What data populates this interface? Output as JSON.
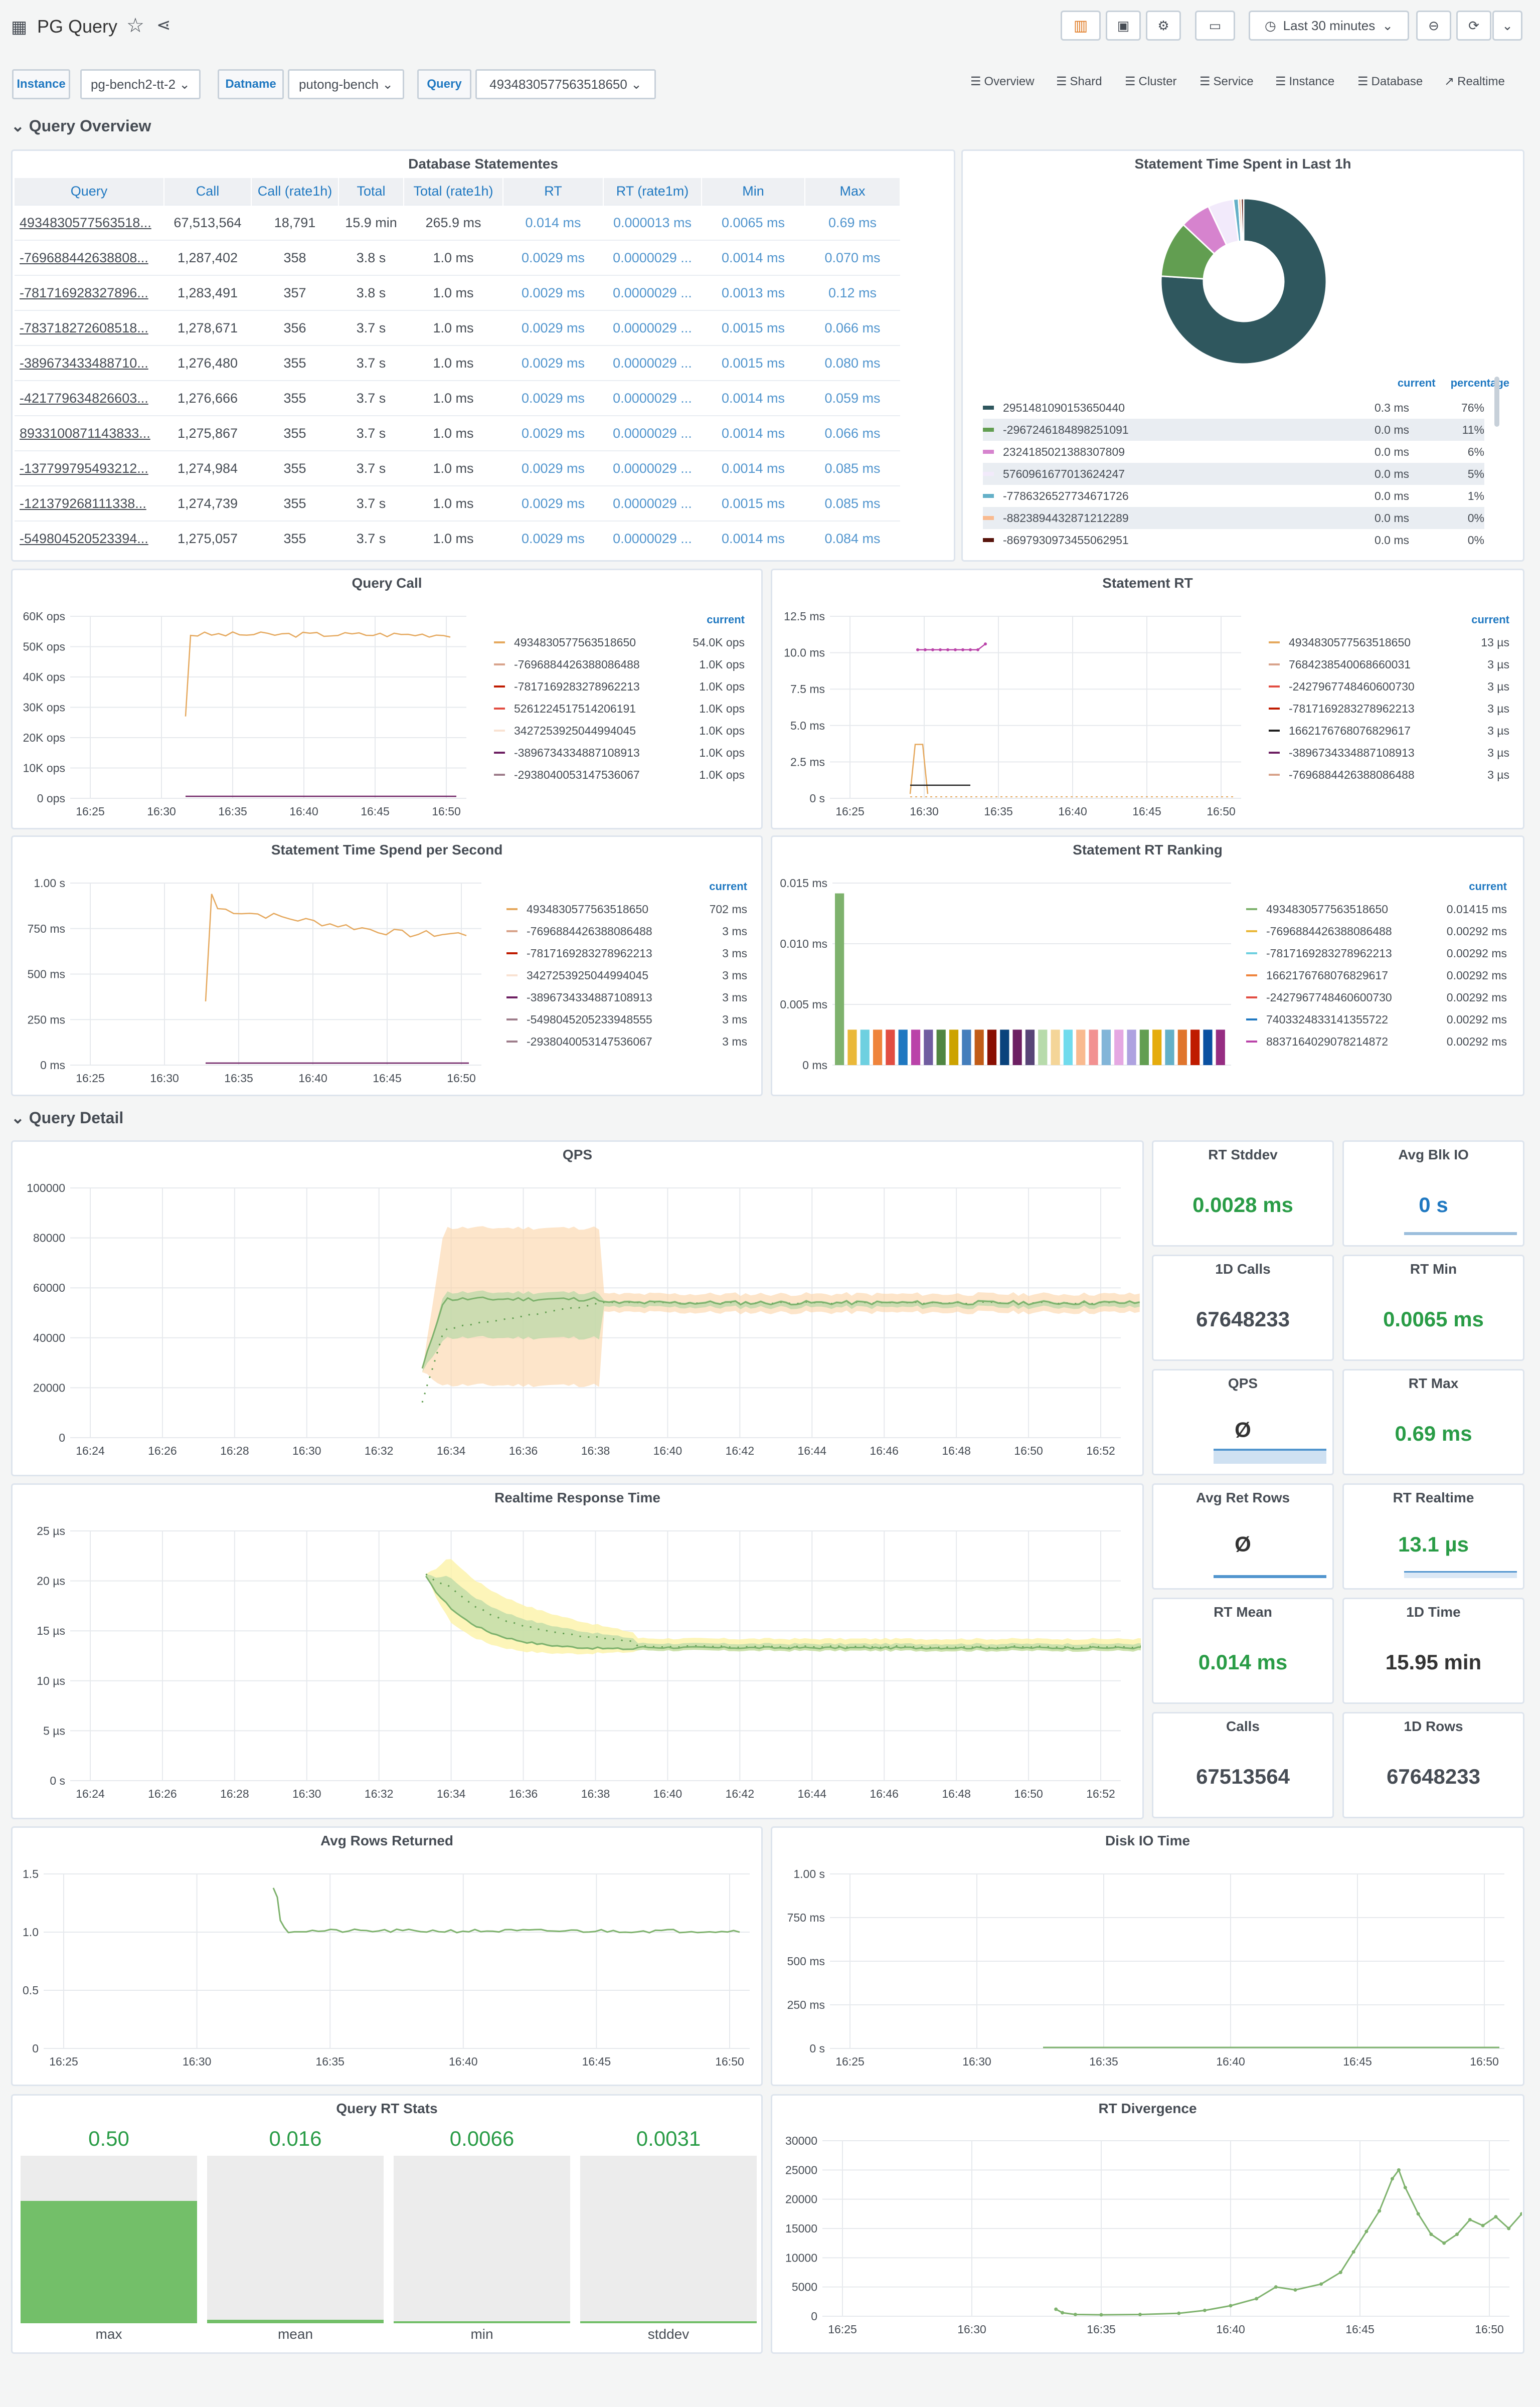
{
  "header": {
    "title": "PG Query",
    "time_range": "Last 30 minutes"
  },
  "vars": [
    {
      "label": "Instance",
      "value": "pg-bench2-tt-2"
    },
    {
      "label": "Datname",
      "value": "putong-bench"
    },
    {
      "label": "Query",
      "value": "4934830577563518650"
    }
  ],
  "links": [
    "Overview",
    "Shard",
    "Cluster",
    "Service",
    "Instance",
    "Database",
    "Realtime"
  ],
  "rows": {
    "overview": "Query Overview",
    "detail": "Query Detail"
  },
  "db_table": {
    "title": "Database Statementes",
    "columns": [
      "Query",
      "Call",
      "Call (rate1h)",
      "Total",
      "Total (rate1h)",
      "RT",
      "RT (rate1m)",
      "Min",
      "Max"
    ],
    "rows": [
      [
        "4934830577563518...",
        "67,513,564",
        "18,791",
        "15.9 min",
        "265.9 ms",
        "0.014 ms",
        "0.000013 ms",
        "0.0065 ms",
        "0.69 ms"
      ],
      [
        "-769688442638808...",
        "1,287,402",
        "358",
        "3.8 s",
        "1.0 ms",
        "0.0029 ms",
        "0.0000029 ...",
        "0.0014 ms",
        "0.070 ms"
      ],
      [
        "-781716928327896...",
        "1,283,491",
        "357",
        "3.8 s",
        "1.0 ms",
        "0.0029 ms",
        "0.0000029 ...",
        "0.0013 ms",
        "0.12 ms"
      ],
      [
        "-783718272608518...",
        "1,278,671",
        "356",
        "3.7 s",
        "1.0 ms",
        "0.0029 ms",
        "0.0000029 ...",
        "0.0015 ms",
        "0.066 ms"
      ],
      [
        "-389673433488710...",
        "1,276,480",
        "355",
        "3.7 s",
        "1.0 ms",
        "0.0029 ms",
        "0.0000029 ...",
        "0.0015 ms",
        "0.080 ms"
      ],
      [
        "-421779634826603...",
        "1,276,666",
        "355",
        "3.7 s",
        "1.0 ms",
        "0.0029 ms",
        "0.0000029 ...",
        "0.0014 ms",
        "0.059 ms"
      ],
      [
        "8933100871143833...",
        "1,275,867",
        "355",
        "3.7 s",
        "1.0 ms",
        "0.0029 ms",
        "0.0000029 ...",
        "0.0014 ms",
        "0.066 ms"
      ],
      [
        "-137799795493212...",
        "1,274,984",
        "355",
        "3.7 s",
        "1.0 ms",
        "0.0029 ms",
        "0.0000029 ...",
        "0.0014 ms",
        "0.085 ms"
      ],
      [
        "-121379268111338...",
        "1,274,739",
        "355",
        "3.7 s",
        "1.0 ms",
        "0.0029 ms",
        "0.0000029 ...",
        "0.0015 ms",
        "0.085 ms"
      ],
      [
        "-549804520523394...",
        "1,275,057",
        "355",
        "3.7 s",
        "1.0 ms",
        "0.0029 ms",
        "0.0000029 ...",
        "0.0014 ms",
        "0.084 ms"
      ]
    ]
  },
  "pie": {
    "title": "Statement Time Spent in Last 1h",
    "hdr_current": "current",
    "hdr_percentage": "percentage",
    "items": [
      {
        "name": "2951481090153650440",
        "current": "0.3 ms",
        "pct": "76%",
        "color": "#2f575e",
        "value": 76
      },
      {
        "name": "-2967246184898251091",
        "current": "0.0 ms",
        "pct": "11%",
        "color": "#629e51",
        "value": 11
      },
      {
        "name": "2324185021388307809",
        "current": "0.0 ms",
        "pct": "6%",
        "color": "#d683ce",
        "value": 6
      },
      {
        "name": "5760961677013624247",
        "current": "0.0 ms",
        "pct": "5%",
        "color": "#f2eafb",
        "value": 5
      },
      {
        "name": "-7786326527734671726",
        "current": "0.0 ms",
        "pct": "1%",
        "color": "#64b0c8",
        "value": 1
      },
      {
        "name": "-8823894432871212289",
        "current": "0.0 ms",
        "pct": "0%",
        "color": "#f9ba8f",
        "value": 0.5
      },
      {
        "name": "-8697930973455062951",
        "current": "0.0 ms",
        "pct": "0%",
        "color": "#58140c",
        "value": 0.5
      }
    ]
  },
  "query_call": {
    "title": "Query Call",
    "hdr": "current",
    "legend": [
      {
        "name": "4934830577563518650",
        "val": "54.0K ops",
        "color": "#e5a85d"
      },
      {
        "name": "-7696884426388086488",
        "val": "1.0K ops",
        "color": "#d8a38b"
      },
      {
        "name": "-7817169283278962213",
        "val": "1.0K ops",
        "color": "#bf1b00"
      },
      {
        "name": "5261224517514206191",
        "val": "1.0K ops",
        "color": "#e24d42"
      },
      {
        "name": "3427253925044994045",
        "val": "1.0K ops",
        "color": "#f9e2d2"
      },
      {
        "name": "-3896734334887108913",
        "val": "1.0K ops",
        "color": "#6d1f62"
      },
      {
        "name": "-2938040053147536067",
        "val": "1.0K ops",
        "color": "#9e7d8b"
      }
    ],
    "y_ticks": [
      "60K ops",
      "50K ops",
      "40K ops",
      "30K ops",
      "20K ops",
      "10K ops",
      "0 ops"
    ],
    "x_ticks": [
      "16:25",
      "16:30",
      "16:35",
      "16:40",
      "16:45",
      "16:50"
    ]
  },
  "stmt_rt": {
    "title": "Statement RT",
    "hdr": "current",
    "legend": [
      {
        "name": "4934830577563518650",
        "val": "13 µs",
        "color": "#e5a85d"
      },
      {
        "name": "7684238540068660031",
        "val": "3 µs",
        "color": "#d8a38b"
      },
      {
        "name": "-2427967748460600730",
        "val": "3 µs",
        "color": "#e24d42"
      },
      {
        "name": "-7817169283278962213",
        "val": "3 µs",
        "color": "#bf1b00"
      },
      {
        "name": "1662176768076829617",
        "val": "3 µs",
        "color": "#1f1f1f"
      },
      {
        "name": "-3896734334887108913",
        "val": "3 µs",
        "color": "#6d1f62"
      },
      {
        "name": "-7696884426388086488",
        "val": "3 µs",
        "color": "#d8a38b"
      }
    ],
    "y_ticks": [
      "12.5 ms",
      "10.0 ms",
      "7.5 ms",
      "5.0 ms",
      "2.5 ms",
      "0 s"
    ],
    "x_ticks": [
      "16:25",
      "16:30",
      "16:35",
      "16:40",
      "16:45",
      "16:50"
    ]
  },
  "time_spend": {
    "title": "Statement Time Spend per Second",
    "hdr": "current",
    "legend": [
      {
        "name": "4934830577563518650",
        "val": "702 ms",
        "color": "#e5a85d"
      },
      {
        "name": "-7696884426388086488",
        "val": "3 ms",
        "color": "#d8a38b"
      },
      {
        "name": "-7817169283278962213",
        "val": "3 ms",
        "color": "#bf1b00"
      },
      {
        "name": "3427253925044994045",
        "val": "3 ms",
        "color": "#f9e2d2"
      },
      {
        "name": "-3896734334887108913",
        "val": "3 ms",
        "color": "#6d1f62"
      },
      {
        "name": "-5498045205233948555",
        "val": "3 ms",
        "color": "#9e7d8b"
      },
      {
        "name": "-2938040053147536067",
        "val": "3 ms",
        "color": "#9e7d8b"
      }
    ],
    "y_ticks": [
      "1.00 s",
      "750 ms",
      "500 ms",
      "250 ms",
      "0 ms"
    ],
    "x_ticks": [
      "16:25",
      "16:30",
      "16:35",
      "16:40",
      "16:45",
      "16:50"
    ]
  },
  "rt_rank": {
    "title": "Statement RT Ranking",
    "hdr": "current",
    "legend": [
      {
        "name": "4934830577563518650",
        "val": "0.01415 ms",
        "color": "#7eb26d"
      },
      {
        "name": "-7696884426388086488",
        "val": "0.00292 ms",
        "color": "#eab839"
      },
      {
        "name": "-7817169283278962213",
        "val": "0.00292 ms",
        "color": "#6ed0e0"
      },
      {
        "name": "1662176768076829617",
        "val": "0.00292 ms",
        "color": "#ef843c"
      },
      {
        "name": "-2427967748460600730",
        "val": "0.00292 ms",
        "color": "#e24d42"
      },
      {
        "name": "7403324833141355722",
        "val": "0.00292 ms",
        "color": "#1f78c1"
      },
      {
        "name": "8837164029078214872",
        "val": "0.00292 ms",
        "color": "#ba43a9"
      }
    ],
    "y_ticks": [
      "0.015 ms",
      "0.010 ms",
      "0.005 ms",
      "0 ms"
    ]
  },
  "qps": {
    "title": "QPS",
    "y_ticks": [
      "100000",
      "80000",
      "60000",
      "40000",
      "20000",
      "0"
    ],
    "x_ticks": [
      "16:24",
      "16:26",
      "16:28",
      "16:30",
      "16:32",
      "16:34",
      "16:36",
      "16:38",
      "16:40",
      "16:42",
      "16:44",
      "16:46",
      "16:48",
      "16:50",
      "16:52"
    ]
  },
  "rrt": {
    "title": "Realtime Response Time",
    "y_ticks": [
      "25 µs",
      "20 µs",
      "15 µs",
      "10 µs",
      "5 µs",
      "0 s"
    ],
    "x_ticks": [
      "16:24",
      "16:26",
      "16:28",
      "16:30",
      "16:32",
      "16:34",
      "16:36",
      "16:38",
      "16:40",
      "16:42",
      "16:44",
      "16:46",
      "16:48",
      "16:50",
      "16:52"
    ]
  },
  "stats": {
    "rt_stddev": {
      "title": "RT Stddev",
      "value": "0.0028 ms"
    },
    "avg_blk_io": {
      "title": "Avg Blk IO",
      "value": "0 s"
    },
    "calls_1d": {
      "title": "1D Calls",
      "value": "67648233"
    },
    "rt_min": {
      "title": "RT Min",
      "value": "0.0065 ms"
    },
    "qps": {
      "title": "QPS",
      "value": "Ø"
    },
    "rt_max": {
      "title": "RT Max",
      "value": "0.69 ms"
    },
    "avg_ret_rows": {
      "title": "Avg Ret Rows",
      "value": "Ø"
    },
    "rt_realtime": {
      "title": "RT Realtime",
      "value": "13.1 µs"
    },
    "rt_mean": {
      "title": "RT Mean",
      "value": "0.014 ms"
    },
    "time_1d": {
      "title": "1D Time",
      "value": "15.95 min"
    },
    "calls": {
      "title": "Calls",
      "value": "67513564"
    },
    "rows_1d": {
      "title": "1D Rows",
      "value": "67648233"
    }
  },
  "avg_rows": {
    "title": "Avg Rows Returned",
    "y_ticks": [
      "1.5",
      "1.0",
      "0.5",
      "0"
    ],
    "x_ticks": [
      "16:25",
      "16:30",
      "16:35",
      "16:40",
      "16:45",
      "16:50"
    ]
  },
  "disk_io": {
    "title": "Disk IO Time",
    "y_ticks": [
      "1.00 s",
      "750 ms",
      "500 ms",
      "250 ms",
      "0 s"
    ],
    "x_ticks": [
      "16:25",
      "16:30",
      "16:35",
      "16:40",
      "16:45",
      "16:50"
    ]
  },
  "rt_stats": {
    "title": "Query RT Stats",
    "bars": [
      {
        "label": "max",
        "value": "0.50",
        "frac": 0.73
      },
      {
        "label": "mean",
        "value": "0.016",
        "frac": 0.02
      },
      {
        "label": "min",
        "value": "0.0066",
        "frac": 0.008
      },
      {
        "label": "stddev",
        "value": "0.0031",
        "frac": 0.004
      }
    ]
  },
  "rt_div": {
    "title": "RT Divergence",
    "y_ticks": [
      "30000",
      "25000",
      "20000",
      "15000",
      "10000",
      "5000",
      "0"
    ],
    "x_ticks": [
      "16:25",
      "16:30",
      "16:35",
      "16:40",
      "16:45",
      "16:50"
    ]
  },
  "chart_data": [
    {
      "type": "line",
      "title": "Query Call",
      "ylim": [
        0,
        60000
      ],
      "series": [
        {
          "name": "4934830577563518650",
          "approx_value": 54000
        }
      ]
    },
    {
      "type": "pie",
      "title": "Statement Time Spent in Last 1h",
      "categories": [
        "2951481090153650440",
        "-2967246184898251091",
        "2324185021388307809",
        "5760961677013624247",
        "-7786326527734671726",
        "-8823894432871212289",
        "-8697930973455062951"
      ],
      "values": [
        76,
        11,
        6,
        5,
        1,
        0,
        0
      ]
    },
    {
      "type": "bar",
      "title": "Statement RT Ranking",
      "ylim": [
        0,
        0.015
      ],
      "values": [
        0.01415,
        0.00292,
        0.00292,
        0.00292,
        0.00292,
        0.00292,
        0.00292
      ]
    },
    {
      "type": "bar",
      "title": "Query RT Stats",
      "categories": [
        "max",
        "mean",
        "min",
        "stddev"
      ],
      "values": [
        0.5,
        0.016,
        0.0066,
        0.0031
      ]
    }
  ]
}
